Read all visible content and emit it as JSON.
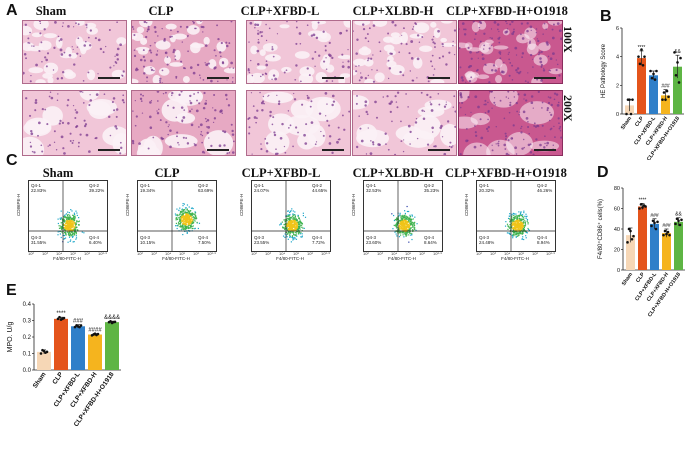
{
  "panels": {
    "A": "A",
    "B": "B",
    "C": "C",
    "D": "D",
    "E": "E"
  },
  "histology": {
    "groups": [
      "Sham",
      "CLP",
      "CLP+XFBD-L",
      "CLP+XLBD-H",
      "CLP+XFBD-H+O1918"
    ],
    "magnifications": [
      "100X",
      "200X"
    ],
    "colors": {
      "light": "#f1c6d8",
      "mid": "#e7a9c3",
      "dark": "#c9588f",
      "nucleus": "#7b3a8f"
    }
  },
  "flow": {
    "groups": [
      "Sham",
      "CLP",
      "CLP+XFBD-L",
      "CLP+XLBD-H",
      "CLP+XFBD-H+O1918"
    ],
    "xlabel": "F4/80-FITC-H",
    "ylabel": "CD86PE-H",
    "ticks": [
      "10²",
      "10³",
      "10⁴",
      "10⁵",
      "10⁶",
      "10⁶·⁸"
    ],
    "quadrants": [
      {
        "q1": "Q4-1",
        "q1v": "22.83%",
        "q2": "Q4-2",
        "q2v": "39.22%",
        "q3": "Q4-3",
        "q3v": "31.55%",
        "q4": "Q4-4",
        "q4v": "6.40%"
      },
      {
        "q1": "Q4-1",
        "q1v": "19.34%",
        "q2": "Q4-2",
        "q2v": "63.69%",
        "q3": "Q4-3",
        "q3v": "10.15%",
        "q4": "Q4-4",
        "q4v": "7.50%"
      },
      {
        "q1": "Q4-1",
        "q1v": "24.07%",
        "q2": "Q4-2",
        "q2v": "44.65%",
        "q3": "Q4-3",
        "q3v": "23.55%",
        "q4": "Q4-4",
        "q4v": "7.72%"
      },
      {
        "q1": "Q4-1",
        "q1v": "32.53%",
        "q2": "Q4-2",
        "q2v": "35.23%",
        "q3": "Q4-3",
        "q3v": "23.60%",
        "q4": "Q4-4",
        "q4v": "8.64%"
      },
      {
        "q1": "Q4-1",
        "q1v": "20.32%",
        "q2": "Q4-2",
        "q2v": "46.26%",
        "q3": "Q4-3",
        "q3v": "24.48%",
        "q4": "Q4-4",
        "q4v": "8.94%"
      }
    ]
  },
  "chart_data": [
    {
      "id": "B",
      "type": "bar",
      "ylabel": "HE Pathology Score",
      "categories": [
        "Sham",
        "CLP",
        "CLP+XFBD-L",
        "CLP+XFBD-H",
        "CLP+XFBD-H+O1918"
      ],
      "values": [
        0.6,
        3.9,
        2.7,
        1.3,
        3.3
      ],
      "errors": [
        0.4,
        0.5,
        0.3,
        0.4,
        0.8
      ],
      "points": [
        [
          0,
          1,
          1,
          0,
          1
        ],
        [
          4,
          3.5,
          4.5,
          3.4,
          4
        ],
        [
          3,
          2.5,
          2.8,
          2.4,
          3
        ],
        [
          1,
          1.5,
          1,
          1.6,
          1.2
        ],
        [
          4.3,
          2.7,
          3.6,
          2.2,
          3.9
        ]
      ],
      "annotations": [
        "",
        "****",
        "",
        "###",
        "&&"
      ],
      "ylim": [
        0,
        6
      ],
      "yticks": [
        "0",
        "2",
        "4",
        "6"
      ],
      "colors": [
        "#f6d7b6",
        "#e4541b",
        "#2f7fc9",
        "#f5b41e",
        "#5eb544"
      ]
    },
    {
      "id": "D",
      "type": "bar",
      "ylabel": "F4/80⁺CD86⁺ cells(%)",
      "categories": [
        "Sham",
        "CLP",
        "CLP+XFBD-L",
        "CLP+XFBD-H",
        "CLP+XFBD-H+O1918"
      ],
      "values": [
        34,
        62,
        45,
        36,
        47
      ],
      "errors": [
        7,
        3,
        5,
        4,
        4
      ],
      "points": [
        [
          27,
          40,
          38,
          30,
          33
        ],
        [
          60,
          64,
          61,
          63,
          62
        ],
        [
          43,
          48,
          46,
          40,
          47
        ],
        [
          34,
          38,
          35,
          37,
          34
        ],
        [
          45,
          50,
          48,
          44,
          49
        ]
      ],
      "annotations": [
        "",
        "****",
        "###",
        "###",
        "&&"
      ],
      "ylim": [
        0,
        80
      ],
      "yticks": [
        "0",
        "20",
        "40",
        "60",
        "80"
      ],
      "colors": [
        "#f6d7b6",
        "#e4541b",
        "#2f7fc9",
        "#f5b41e",
        "#5eb544"
      ]
    },
    {
      "id": "E",
      "type": "bar",
      "ylabel": "MPO. U/g",
      "categories": [
        "Sham",
        "CLP",
        "CLP+XFBD-L",
        "CLP+XFBD-H",
        "CLP+XFBD-H+O1918"
      ],
      "values": [
        0.11,
        0.31,
        0.265,
        0.215,
        0.29
      ],
      "errors": [
        0.012,
        0.01,
        0.01,
        0.006,
        0.006
      ],
      "points": [
        [
          0.1,
          0.12,
          0.115,
          0.105,
          0.11
        ],
        [
          0.31,
          0.32,
          0.305,
          0.31,
          0.315
        ],
        [
          0.26,
          0.27,
          0.265,
          0.26,
          0.27
        ],
        [
          0.21,
          0.215,
          0.22,
          0.212,
          0.218
        ],
        [
          0.29,
          0.295,
          0.285,
          0.29,
          0.292
        ]
      ],
      "annotations": [
        "",
        "****",
        "###",
        "####",
        "&&&&"
      ],
      "ylim": [
        0,
        0.4
      ],
      "yticks": [
        "0.0",
        "0.1",
        "0.2",
        "0.3",
        "0.4"
      ],
      "colors": [
        "#f6d7b6",
        "#e4541b",
        "#2f7fc9",
        "#f5b41e",
        "#5eb544"
      ]
    }
  ]
}
